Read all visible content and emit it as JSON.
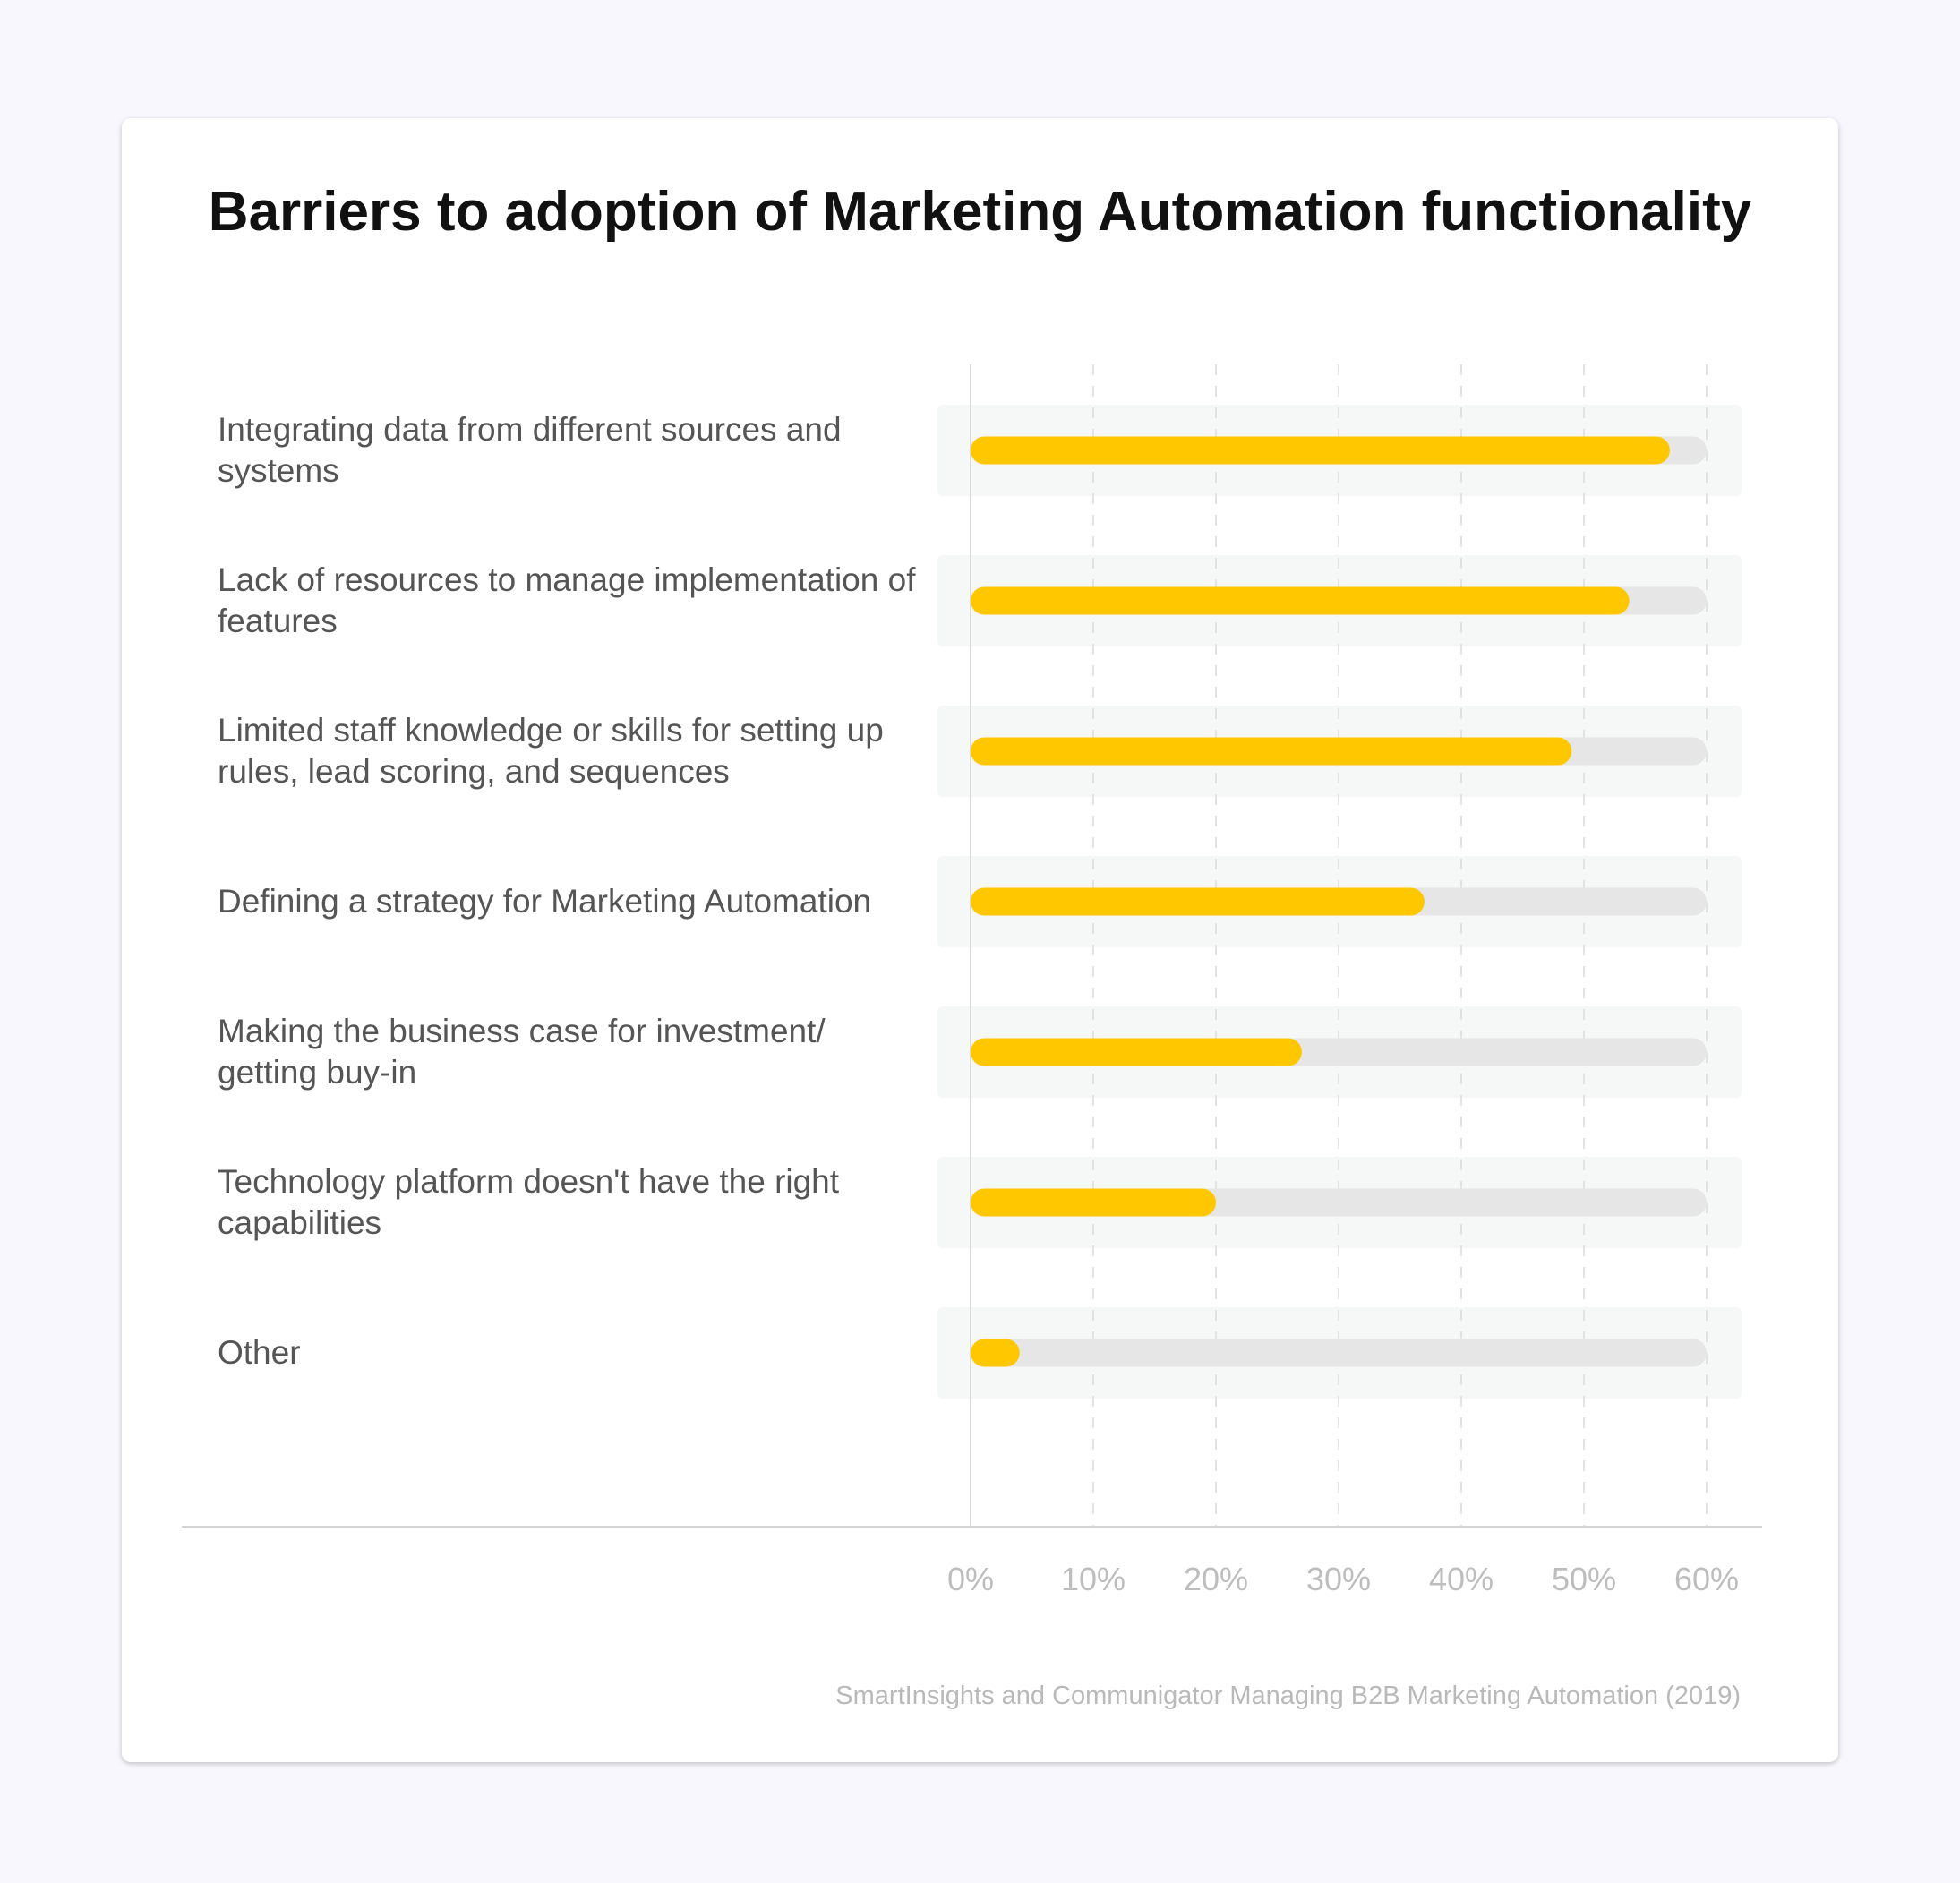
{
  "chart_data": {
    "type": "bar",
    "orientation": "horizontal",
    "title": "Barriers to adoption of Marketing Automation functionality",
    "categories": [
      "Integrating data from different sources and systems",
      "Lack of resources to manage implementation of features",
      "Limited staff knowledge or skills for setting up rules, lead scoring, and sequences",
      "Defining a strategy for Marketing Automation",
      "Making the business case for investment/ getting buy-in",
      "Technology platform doesn't have the right capabilities",
      "Other"
    ],
    "values": [
      57,
      53.7,
      49,
      37,
      27,
      20,
      4
    ],
    "xlim": [
      0,
      60
    ],
    "x_ticks": [
      "0%",
      "10%",
      "20%",
      "30%",
      "40%",
      "50%",
      "60%"
    ],
    "grid": true,
    "source": "SmartInsights and Communigator Managing B2B Marketing Automation (2019)",
    "colors": {
      "bar": "#ffc700",
      "track": "#e6e6e6",
      "row_bg": "#f6f7f7",
      "grid": "#e2e2e2"
    }
  }
}
